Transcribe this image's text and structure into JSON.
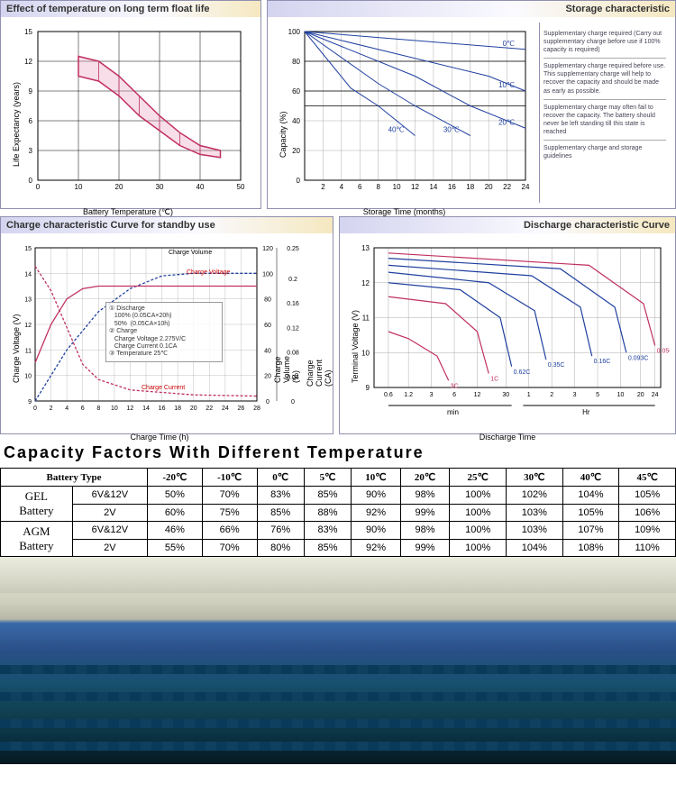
{
  "panel1": {
    "title": "Effect of temperature on long term float life",
    "chart": {
      "type": "area-band",
      "xlabel": "Battery Temperature (℃)",
      "ylabel": "Life Expectancy (years)",
      "xlim": [
        0,
        50
      ],
      "ylim": [
        0,
        15
      ],
      "xticks": [
        0,
        10,
        20,
        30,
        40,
        50
      ],
      "yticks": [
        0,
        3,
        6,
        9,
        12,
        15
      ],
      "band_upper": [
        [
          10,
          12.5
        ],
        [
          15,
          12
        ],
        [
          20,
          10.5
        ],
        [
          25,
          8.5
        ],
        [
          30,
          6.5
        ],
        [
          35,
          4.8
        ],
        [
          40,
          3.5
        ],
        [
          45,
          3
        ]
      ],
      "band_lower": [
        [
          10,
          10.5
        ],
        [
          15,
          10
        ],
        [
          20,
          8.5
        ],
        [
          25,
          6.5
        ],
        [
          30,
          5
        ],
        [
          35,
          3.5
        ],
        [
          40,
          2.6
        ],
        [
          45,
          2.3
        ]
      ],
      "band_fill": "#e8a0c0",
      "band_stroke": "#c03060",
      "hatch": true,
      "grid_color": "#000000",
      "background": "#ffffff"
    }
  },
  "panel2": {
    "title": "Storage characteristic",
    "chart": {
      "type": "line",
      "xlabel": "Storage Time (months)",
      "ylabel": "Capacity (%)",
      "xlim": [
        0,
        24
      ],
      "ylim": [
        0,
        100
      ],
      "xticks": [
        2,
        4,
        6,
        8,
        10,
        12,
        14,
        16,
        18,
        20,
        22,
        24
      ],
      "yticks": [
        0,
        20,
        40,
        60,
        80,
        100
      ],
      "refs": [
        100,
        80,
        60,
        50
      ],
      "series": [
        {
          "label": "0℃",
          "color": "#2040a0",
          "points": [
            [
              0,
              100
            ],
            [
              24,
              88
            ]
          ]
        },
        {
          "label": "10℃",
          "color": "#2040a0",
          "points": [
            [
              0,
              100
            ],
            [
              20,
              70
            ],
            [
              24,
              60
            ]
          ]
        },
        {
          "label": "20℃",
          "color": "#2040a0",
          "points": [
            [
              0,
              100
            ],
            [
              12,
              70
            ],
            [
              18,
              50
            ],
            [
              24,
              35
            ]
          ]
        },
        {
          "label": "30℃",
          "color": "#2040a0",
          "points": [
            [
              0,
              100
            ],
            [
              8,
              65
            ],
            [
              12,
              50
            ],
            [
              18,
              30
            ]
          ]
        },
        {
          "label": "40℃",
          "color": "#2040a0",
          "points": [
            [
              0,
              100
            ],
            [
              5,
              62
            ],
            [
              8,
              50
            ],
            [
              12,
              30
            ]
          ]
        }
      ],
      "grid_color": "#999999",
      "background": "#ffffff"
    },
    "notes": [
      "Supplementary charge required (Carry out supplementary charge before use if 100% capacity is required)",
      "Supplementary charge required before use. This supplementary charge will help to recover the capacity and should be made as early as possible.",
      "Supplementary charge may often fail to recover the capacity. The battery should never be left standing till this state is reached",
      "Supplementary charge and storage guidelines"
    ]
  },
  "panel3": {
    "title": "Charge characteristic Curve for standby use",
    "chart": {
      "type": "line-multi-axis",
      "xlabel": "Charge Time (h)",
      "y1label": "Charge Voltage (V)",
      "y2label": "Charge Volume (%)",
      "y3label": "Charge Current (CA)",
      "xlim": [
        0,
        28
      ],
      "y1lim": [
        9,
        15
      ],
      "y2lim": [
        0,
        120
      ],
      "y3lim": [
        0,
        0.25
      ],
      "xticks": [
        0,
        2,
        4,
        6,
        8,
        10,
        12,
        14,
        16,
        18,
        20,
        22,
        24,
        26,
        28
      ],
      "y1ticks": [
        9,
        10,
        11,
        12,
        13,
        14,
        15
      ],
      "y2ticks": [
        0,
        20,
        40,
        60,
        80,
        100,
        120
      ],
      "y3ticks": [
        0,
        0.04,
        0.08,
        0.12,
        0.16,
        0.2,
        0.25
      ],
      "series": [
        {
          "name": "Charge Volume",
          "color": "#2040a0",
          "dash": "3,2",
          "points": [
            [
              0,
              0
            ],
            [
              4,
              40
            ],
            [
              8,
              70
            ],
            [
              12,
              88
            ],
            [
              16,
              98
            ],
            [
              20,
              100
            ],
            [
              28,
              100
            ]
          ],
          "axis": "y2"
        },
        {
          "name": "Charge Voltage",
          "color": "#c03060",
          "dash": null,
          "points": [
            [
              0,
              10.5
            ],
            [
              2,
              12
            ],
            [
              4,
              13
            ],
            [
              6,
              13.4
            ],
            [
              8,
              13.5
            ],
            [
              28,
              13.5
            ]
          ],
          "axis": "y1"
        },
        {
          "name": "Charge Current",
          "color": "#c03060",
          "dash": "3,2",
          "points": [
            [
              0,
              0.22
            ],
            [
              2,
              0.18
            ],
            [
              4,
              0.12
            ],
            [
              6,
              0.06
            ],
            [
              8,
              0.035
            ],
            [
              12,
              0.018
            ],
            [
              20,
              0.01
            ],
            [
              28,
              0.008
            ]
          ],
          "axis": "y3"
        }
      ],
      "note_lines": [
        "① Discharge",
        "   100% (0.05CA×20h)",
        "   50%  (0.05CA×10h)",
        "② Charge",
        "   Charge Voltage 2.275V/C",
        "   Charge Current 0.1CA",
        "③ Temperature 25℃"
      ],
      "grid_color": "#999999"
    }
  },
  "panel4": {
    "title": "Discharge characteristic Curve",
    "chart": {
      "type": "line",
      "xlabel": "Discharge Time",
      "ylabel": "Terminal Voltage (V)",
      "xticks_labels": [
        "0.6",
        "1.2",
        "3",
        "6",
        "12",
        "30",
        "1",
        "2",
        "3",
        "5",
        "10",
        "20",
        "24"
      ],
      "xticks_pos": [
        0.05,
        0.12,
        0.2,
        0.28,
        0.36,
        0.46,
        0.54,
        0.62,
        0.7,
        0.78,
        0.86,
        0.93,
        0.98
      ],
      "x_split": 0.5,
      "x_units": [
        "min",
        "Hr"
      ],
      "ylim": [
        9,
        13
      ],
      "yticks": [
        9,
        10,
        11,
        12,
        13
      ],
      "series": [
        {
          "label": "3C",
          "color": "#c03060",
          "pts": [
            [
              0.05,
              10.6
            ],
            [
              0.12,
              10.4
            ],
            [
              0.22,
              9.9
            ],
            [
              0.26,
              9.2
            ]
          ]
        },
        {
          "label": "1C",
          "color": "#c03060",
          "pts": [
            [
              0.05,
              11.6
            ],
            [
              0.25,
              11.4
            ],
            [
              0.36,
              10.6
            ],
            [
              0.4,
              9.4
            ]
          ]
        },
        {
          "label": "0.62C",
          "color": "#2040a0",
          "pts": [
            [
              0.05,
              12.0
            ],
            [
              0.3,
              11.8
            ],
            [
              0.44,
              11.0
            ],
            [
              0.48,
              9.6
            ]
          ]
        },
        {
          "label": "0.35C",
          "color": "#2040a0",
          "pts": [
            [
              0.05,
              12.3
            ],
            [
              0.4,
              12.0
            ],
            [
              0.56,
              11.2
            ],
            [
              0.6,
              9.8
            ]
          ]
        },
        {
          "label": "0.16C",
          "color": "#2040a0",
          "pts": [
            [
              0.05,
              12.5
            ],
            [
              0.55,
              12.2
            ],
            [
              0.72,
              11.3
            ],
            [
              0.76,
              9.9
            ]
          ]
        },
        {
          "label": "0.093C",
          "color": "#2040a0",
          "pts": [
            [
              0.05,
              12.7
            ],
            [
              0.65,
              12.4
            ],
            [
              0.84,
              11.3
            ],
            [
              0.88,
              10.0
            ]
          ]
        },
        {
          "label": "0.05C",
          "color": "#c03060",
          "pts": [
            [
              0.05,
              12.85
            ],
            [
              0.75,
              12.5
            ],
            [
              0.94,
              11.4
            ],
            [
              0.98,
              10.2
            ]
          ]
        }
      ],
      "grid_color": "#999999"
    }
  },
  "capacity_table": {
    "title": "Capacity Factors With Different Temperature",
    "header": [
      "Battery Type",
      "-20℃",
      "-10℃",
      "0℃",
      "5℃",
      "10℃",
      "20℃",
      "25℃",
      "30℃",
      "40℃",
      "45℃"
    ],
    "groups": [
      {
        "name": "GEL Battery",
        "rows": [
          {
            "sub": "6V&12V",
            "vals": [
              "50%",
              "70%",
              "83%",
              "85%",
              "90%",
              "98%",
              "100%",
              "102%",
              "104%",
              "105%"
            ]
          },
          {
            "sub": "2V",
            "vals": [
              "60%",
              "75%",
              "85%",
              "88%",
              "92%",
              "99%",
              "100%",
              "103%",
              "105%",
              "106%"
            ]
          }
        ]
      },
      {
        "name": "AGM Battery",
        "rows": [
          {
            "sub": "6V&12V",
            "vals": [
              "46%",
              "66%",
              "76%",
              "83%",
              "90%",
              "98%",
              "100%",
              "103%",
              "107%",
              "109%"
            ]
          },
          {
            "sub": "2V",
            "vals": [
              "55%",
              "70%",
              "80%",
              "85%",
              "92%",
              "99%",
              "100%",
              "104%",
              "108%",
              "110%"
            ]
          }
        ]
      }
    ]
  }
}
